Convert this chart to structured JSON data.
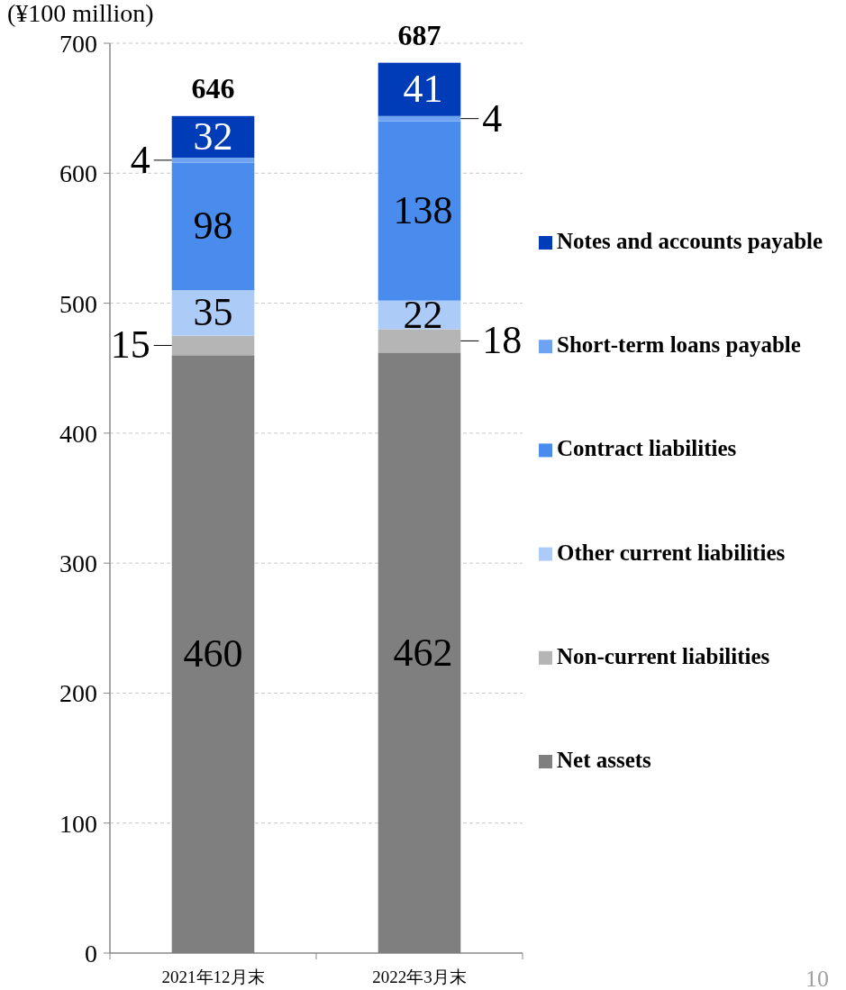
{
  "chart_data": {
    "type": "bar",
    "stacked": true,
    "ylabel": "(¥100 million)",
    "categories": [
      "2021年12月末",
      "2022年3月末"
    ],
    "series": [
      {
        "name": "Net assets",
        "color": "#7f7f7f",
        "values": [
          460,
          462
        ]
      },
      {
        "name": "Non-current liabilities",
        "color": "#b5b5b5",
        "values": [
          15,
          18
        ]
      },
      {
        "name": "Other current liabilities",
        "color": "#adcbf7",
        "values": [
          35,
          22
        ]
      },
      {
        "name": "Contract liabilities",
        "color": "#4a8cee",
        "values": [
          98,
          138
        ]
      },
      {
        "name": "Short-term loans payable",
        "color": "#6ea3f2",
        "values": [
          4,
          4
        ]
      },
      {
        "name": "Notes and accounts payable",
        "color": "#003cb8",
        "values": [
          32,
          41
        ]
      }
    ],
    "totals": [
      "646",
      "687"
    ],
    "ylim": [
      0,
      700
    ],
    "yticks": [
      0,
      100,
      200,
      300,
      400,
      500,
      600,
      700
    ],
    "grid": "y",
    "legend": "right",
    "data_labels": true,
    "annotations": [
      "10"
    ]
  }
}
